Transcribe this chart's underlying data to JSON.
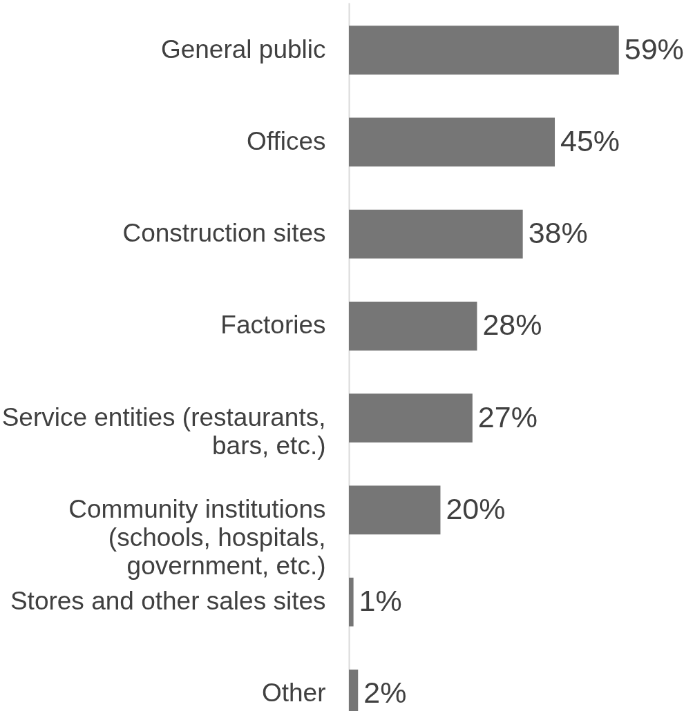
{
  "chart_data": {
    "type": "bar",
    "orientation": "horizontal",
    "categories": [
      "General public",
      "Offices",
      "Construction sites",
      "Factories",
      "Service entities (restaurants, bars, etc.)",
      "Community institutions (schools, hospitals, government, etc.)",
      "Stores and other sales sites",
      "Other"
    ],
    "values": [
      59,
      45,
      38,
      28,
      27,
      20,
      1,
      2
    ],
    "value_labels": [
      "59%",
      "45%",
      "38%",
      "28%",
      "27%",
      "20%",
      "1%",
      "2%"
    ],
    "color": "#767676"
  }
}
